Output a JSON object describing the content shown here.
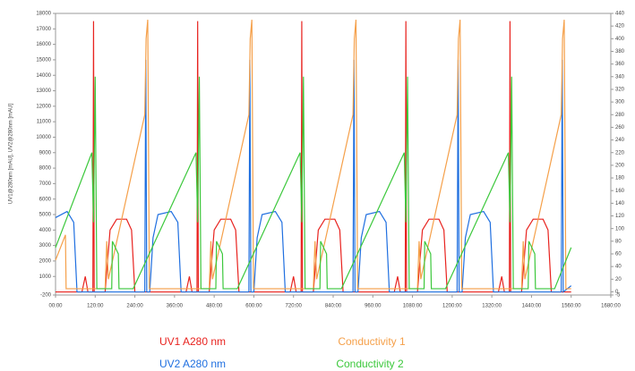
{
  "chart_data": {
    "type": "line",
    "y_label": "UV1@280nm [mAU], UV2@280nm [mAU]",
    "xlim": [
      0,
      1680
    ],
    "xticks": [
      {
        "value": 0,
        "label": "00:00"
      },
      {
        "value": 120,
        "label": "120:00"
      },
      {
        "value": 240,
        "label": "240:00"
      },
      {
        "value": 360,
        "label": "360:00"
      },
      {
        "value": 480,
        "label": "480:00"
      },
      {
        "value": 600,
        "label": "600:00"
      },
      {
        "value": 720,
        "label": "720:00"
      },
      {
        "value": 840,
        "label": "840:00"
      },
      {
        "value": 960,
        "label": "960:00"
      },
      {
        "value": 1080,
        "label": "1080:00"
      },
      {
        "value": 1200,
        "label": "1200:00"
      },
      {
        "value": 1320,
        "label": "1320:00"
      },
      {
        "value": 1440,
        "label": "1440:00"
      },
      {
        "value": 1560,
        "label": "1560:00"
      },
      {
        "value": 1680,
        "label": "1680:00"
      }
    ],
    "ylim": [
      -200,
      18000
    ],
    "yticks": [
      -200,
      1000,
      2000,
      3000,
      4000,
      5000,
      6000,
      7000,
      8000,
      9000,
      10000,
      11000,
      12000,
      13000,
      14000,
      15000,
      16000,
      17000,
      18000
    ],
    "y2lim": [
      -5,
      440
    ],
    "y2ticks": [
      -5,
      0,
      20,
      40,
      60,
      80,
      100,
      120,
      140,
      160,
      180,
      200,
      220,
      240,
      260,
      280,
      300,
      320,
      340,
      360,
      380,
      400,
      420,
      440
    ],
    "series": [
      {
        "name": "UV1 A280 nm",
        "color": "#e8231f",
        "x": [
          0,
          80,
          90,
          98,
          113,
          115,
          117,
          150,
          165,
          185,
          215,
          230,
          240,
          395,
          405,
          413,
          428,
          430,
          432,
          465,
          480,
          500,
          530,
          545,
          555,
          710,
          720,
          728,
          743,
          745,
          747,
          780,
          795,
          815,
          845,
          860,
          870,
          1025,
          1035,
          1043,
          1058,
          1060,
          1062,
          1095,
          1110,
          1130,
          1160,
          1175,
          1185,
          1340,
          1350,
          1358,
          1373,
          1375,
          1377,
          1410,
          1425,
          1445,
          1475,
          1490,
          1500,
          1560
        ],
        "values": [
          0,
          0,
          1000,
          0,
          0,
          17500,
          0,
          0,
          4000,
          4700,
          4700,
          4000,
          0,
          0,
          1000,
          0,
          0,
          17500,
          0,
          0,
          4000,
          4700,
          4700,
          4000,
          0,
          0,
          1000,
          0,
          0,
          17500,
          0,
          0,
          4000,
          4700,
          4700,
          4000,
          0,
          0,
          1000,
          0,
          0,
          17500,
          0,
          0,
          4000,
          4700,
          4700,
          4000,
          0,
          0,
          1000,
          0,
          0,
          17500,
          0,
          0,
          4000,
          4700,
          4700,
          4000,
          0,
          0
        ]
      },
      {
        "name": "UV2 A280 nm",
        "color": "#1f6fe0",
        "x": [
          0,
          35,
          55,
          65,
          270,
          273,
          276,
          285,
          295,
          310,
          350,
          370,
          380,
          585,
          588,
          591,
          600,
          610,
          625,
          665,
          685,
          695,
          900,
          903,
          906,
          915,
          925,
          940,
          980,
          1000,
          1010,
          1215,
          1218,
          1221,
          1230,
          1240,
          1255,
          1295,
          1315,
          1325,
          1530,
          1533,
          1536,
          1560
        ],
        "values": [
          4800,
          5200,
          4500,
          0,
          0,
          15000,
          0,
          0,
          3500,
          5000,
          5200,
          4500,
          0,
          0,
          15000,
          0,
          0,
          3500,
          5000,
          5200,
          4500,
          0,
          0,
          15000,
          0,
          0,
          3500,
          5000,
          5200,
          4500,
          0,
          0,
          15000,
          0,
          0,
          3500,
          5000,
          5200,
          4500,
          0,
          0,
          15000,
          0,
          400
        ]
      },
      {
        "name": "Conductivity 1",
        "color": "#f5a04a",
        "axis": "y2",
        "x": [
          0,
          30,
          32,
          130,
          150,
          155,
          160,
          270,
          274,
          279,
          284,
          445,
          465,
          470,
          475,
          585,
          589,
          594,
          599,
          760,
          780,
          785,
          790,
          900,
          904,
          909,
          914,
          1075,
          1095,
          1100,
          1105,
          1215,
          1219,
          1224,
          1229,
          1390,
          1410,
          1415,
          1420,
          1530,
          1534,
          1539,
          1544,
          1560
        ],
        "values": [
          50,
          90,
          5,
          5,
          5,
          80,
          20,
          280,
          400,
          430,
          5,
          5,
          5,
          80,
          20,
          280,
          400,
          430,
          5,
          5,
          5,
          80,
          20,
          280,
          400,
          430,
          5,
          5,
          5,
          80,
          20,
          280,
          400,
          430,
          5,
          5,
          5,
          80,
          20,
          280,
          400,
          430,
          5,
          5
        ]
      },
      {
        "name": "Conductivity 2",
        "color": "#3cc83c",
        "axis": "y2",
        "x": [
          0,
          110,
          115,
          120,
          125,
          170,
          172,
          190,
          192,
          235,
          425,
          430,
          435,
          440,
          485,
          487,
          505,
          507,
          550,
          740,
          745,
          750,
          755,
          800,
          802,
          820,
          822,
          865,
          1055,
          1060,
          1065,
          1070,
          1115,
          1117,
          1135,
          1137,
          1180,
          1370,
          1375,
          1380,
          1385,
          1430,
          1432,
          1450,
          1452,
          1510,
          1560
        ],
        "values": [
          70,
          220,
          110,
          340,
          5,
          5,
          80,
          60,
          5,
          5,
          220,
          110,
          340,
          5,
          5,
          80,
          60,
          5,
          5,
          220,
          110,
          340,
          5,
          5,
          80,
          60,
          5,
          5,
          220,
          110,
          340,
          5,
          5,
          80,
          60,
          5,
          5,
          220,
          110,
          340,
          5,
          5,
          80,
          60,
          5,
          5,
          70
        ]
      }
    ]
  }
}
